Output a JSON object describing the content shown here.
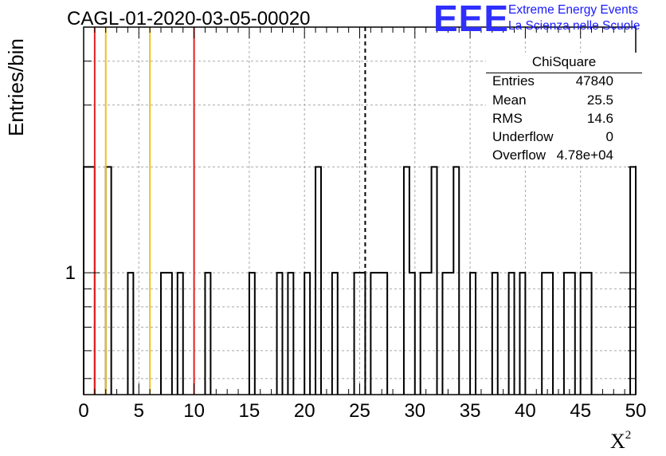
{
  "title": "CAGL-01-2020-03-05-00020",
  "logo": {
    "mark": "EEE",
    "line1": "Extreme Energy Events",
    "line2": "La Scienza nelle Scuole",
    "color": "#2f2fff"
  },
  "stats": {
    "title": "ChiSquare",
    "rows": [
      {
        "label": "Entries",
        "value": "47840"
      },
      {
        "label": "Mean",
        "value": "25.5"
      },
      {
        "label": "RMS",
        "value": "14.6"
      },
      {
        "label": "Underflow",
        "value": "0"
      },
      {
        "label": "Overflow",
        "value": "4.78e+04"
      }
    ]
  },
  "chart_data": {
    "type": "histogram",
    "xlabel": "X",
    "xlabel_superscript": "2",
    "ylabel": "Entries/bin",
    "xlim": [
      0,
      50
    ],
    "ylim": [
      0.45,
      5
    ],
    "yscale": "log",
    "grid": true,
    "bin_width": 0.5,
    "x_ticks": [
      "0",
      "5",
      "10",
      "15",
      "20",
      "25",
      "30",
      "35",
      "40",
      "45",
      "50"
    ],
    "y_ticks": [
      "1"
    ],
    "bins": [
      {
        "x0": 0.0,
        "x1": 1.0,
        "count": 2
      },
      {
        "x0": 2.0,
        "x1": 2.5,
        "count": 2
      },
      {
        "x0": 4.0,
        "x1": 4.5,
        "count": 1
      },
      {
        "x0": 7.0,
        "x1": 8.0,
        "count": 1
      },
      {
        "x0": 8.5,
        "x1": 9.0,
        "count": 1
      },
      {
        "x0": 11.0,
        "x1": 11.5,
        "count": 1
      },
      {
        "x0": 15.0,
        "x1": 15.5,
        "count": 1
      },
      {
        "x0": 17.5,
        "x1": 18.0,
        "count": 1
      },
      {
        "x0": 18.5,
        "x1": 19.0,
        "count": 1
      },
      {
        "x0": 20.0,
        "x1": 20.5,
        "count": 1
      },
      {
        "x0": 21.0,
        "x1": 21.5,
        "count": 2
      },
      {
        "x0": 22.5,
        "x1": 23.0,
        "count": 1
      },
      {
        "x0": 24.5,
        "x1": 25.5,
        "count": 1
      },
      {
        "x0": 26.0,
        "x1": 27.5,
        "count": 1
      },
      {
        "x0": 29.0,
        "x1": 29.5,
        "count": 2
      },
      {
        "x0": 29.5,
        "x1": 30.0,
        "count": 1
      },
      {
        "x0": 30.5,
        "x1": 31.5,
        "count": 1
      },
      {
        "x0": 31.5,
        "x1": 32.0,
        "count": 2
      },
      {
        "x0": 32.5,
        "x1": 33.5,
        "count": 1
      },
      {
        "x0": 33.5,
        "x1": 34.0,
        "count": 2
      },
      {
        "x0": 35.0,
        "x1": 35.5,
        "count": 1
      },
      {
        "x0": 37.0,
        "x1": 37.5,
        "count": 1
      },
      {
        "x0": 38.5,
        "x1": 39.0,
        "count": 1
      },
      {
        "x0": 39.5,
        "x1": 40.0,
        "count": 1
      },
      {
        "x0": 41.5,
        "x1": 42.5,
        "count": 1
      },
      {
        "x0": 43.5,
        "x1": 44.5,
        "count": 1
      },
      {
        "x0": 45.0,
        "x1": 46.0,
        "count": 1
      },
      {
        "x0": 49.5,
        "x1": 50.0,
        "count": 2
      }
    ],
    "vlines": [
      {
        "x": 1.0,
        "color": "#e02020",
        "style": "solid"
      },
      {
        "x": 2.0,
        "color": "#f0c020",
        "style": "solid"
      },
      {
        "x": 6.0,
        "color": "#f0c020",
        "style": "solid"
      },
      {
        "x": 10.0,
        "color": "#e02020",
        "style": "solid"
      },
      {
        "x": 25.5,
        "color": "#000000",
        "style": "dashed"
      }
    ]
  }
}
